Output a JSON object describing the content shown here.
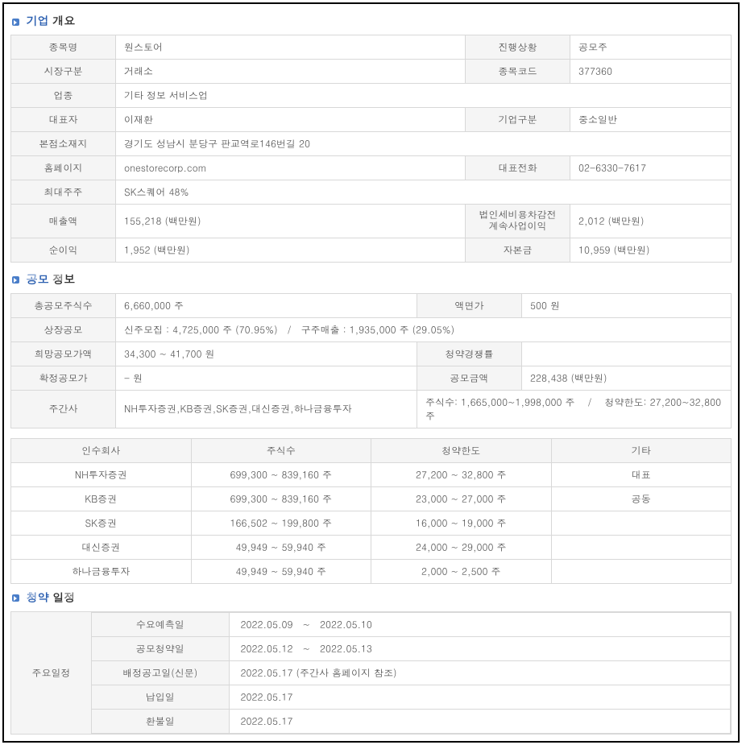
{
  "sections": {
    "company": {
      "strong": "기업",
      "normal": "개요"
    },
    "offering": {
      "strong": "공모",
      "normal": "정보"
    },
    "schedule": {
      "strong": "청약",
      "normal": "일정"
    }
  },
  "company": {
    "name_label": "종목명",
    "name_value": "원스토어",
    "status_label": "진행상황",
    "status_value": "공모주",
    "market_label": "시장구분",
    "market_value": "거래소",
    "code_label": "종목코드",
    "code_value": "377360",
    "industry_label": "업종",
    "industry_value": "기타 정보 서비스업",
    "ceo_label": "대표자",
    "ceo_value": "이재환",
    "biztype_label": "기업구분",
    "biztype_value": "중소일반",
    "address_label": "본점소재지",
    "address_value": "경기도 성남시 분당구 판교역로146번길 20",
    "homepage_label": "홈페이지",
    "homepage_value": "onestorecorp.com",
    "phone_label": "대표전화",
    "phone_value": "02-6330-7617",
    "major_shareholder_label": "최대주주",
    "major_shareholder_value": "SK스퀘어 48%",
    "revenue_label": "매출액",
    "revenue_value": "155,218 (백만원)",
    "pretax_label": "법인세비용차감전\n계속사업이익",
    "pretax_value": "2,012 (백만원)",
    "netincome_label": "순이익",
    "netincome_value": "1,952 (백만원)",
    "capital_label": "자본금",
    "capital_value": "10,959 (백만원)"
  },
  "offering": {
    "total_shares_label": "총공모주식수",
    "total_shares_value": "6,660,000 주",
    "facevalue_label": "액면가",
    "facevalue_value": "500 원",
    "listing_label": "상장공모",
    "listing_value": "신주모집 : 4,725,000 주 (70.95%)　/　구주매출 : 1,935,000 주 (29.05%)",
    "hope_price_label": "희망공모가액",
    "hope_price_value": "34,300 ~ 41,700 원",
    "competition_label": "청약경쟁률",
    "competition_value": "",
    "confirmed_price_label": "확정공모가",
    "confirmed_price_value": "- 원",
    "amount_label": "공모금액",
    "amount_value": "228,438 (백만원)",
    "manager_label": "주간사",
    "manager_value": "NH투자증권,KB증권,SK증권,대신증권,하나금융투자",
    "share_limit_value": "주식수: 1,665,000~1,998,000 주　 /　 청약한도: 27,200~32,800 주"
  },
  "underwriters": {
    "headers": [
      "인수회사",
      "주식수",
      "청약한도",
      "기타"
    ],
    "rows": [
      [
        "NH투자증권",
        "699,300 ~ 839,160 주",
        "27,200 ~ 32,800 주",
        "대표"
      ],
      [
        "KB증권",
        "699,300 ~ 839,160 주",
        "23,000 ~ 27,000 주",
        "공동"
      ],
      [
        "SK증권",
        "166,502 ~ 199,800 주",
        "16,000 ~ 19,000 주",
        ""
      ],
      [
        "대신증권",
        "49,949 ~ 59,940 주",
        "24,000 ~ 29,000 주",
        ""
      ],
      [
        "하나금융투자",
        "49,949 ~ 59,940 주",
        "2,000 ~ 2,500 주",
        ""
      ]
    ]
  },
  "schedule": {
    "main_label": "주요일정",
    "rows": [
      {
        "label": "수요예측일",
        "value": "2022.05.09　~　2022.05.10"
      },
      {
        "label": "공모청약일",
        "value": "2022.05.12　~　2022.05.13"
      },
      {
        "label": "배정공고일(신문)",
        "value": "2022.05.17 (주간사 홈페이지 참조)"
      },
      {
        "label": "납입일",
        "value": "2022.05.17"
      },
      {
        "label": "환불일",
        "value": "2022.05.17"
      }
    ]
  },
  "colors": {
    "accent": "#2b5fb0",
    "bullet": "#4a7ec9",
    "border": "#d8d8d8",
    "label_bg": "#f5f5f5",
    "text": "#555555"
  }
}
